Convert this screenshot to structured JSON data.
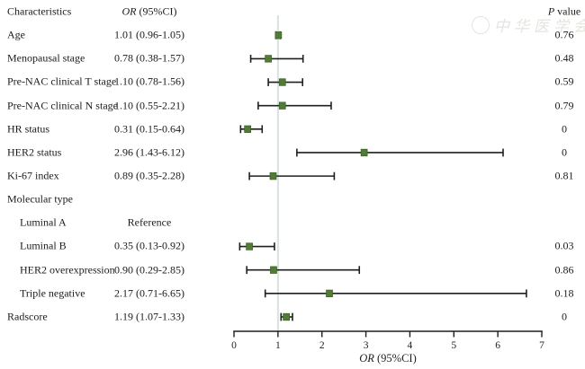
{
  "header": {
    "characteristics": "Characteristics",
    "or_col_italic": "OR",
    "or_col_rest": " (95%CI)",
    "p_col_italic": "P",
    "p_col_rest": " value"
  },
  "watermark": {
    "emblem": "medical-association-seal",
    "text": "中华医学会"
  },
  "chart_data": {
    "type": "forest",
    "title": "",
    "xlabel_italic": "OR",
    "xlabel_rest": " (95%CI)",
    "xlim": [
      0,
      7
    ],
    "xticks": [
      "0",
      "1",
      "2",
      "3",
      "4",
      "5",
      "6",
      "7"
    ],
    "ref_line_x": 1,
    "grid": false,
    "accent_color": "#4e7d33",
    "marker_edge_color": "#3a6122",
    "refline_color": "#d6e3e1",
    "ink_color": "#1f1f1f",
    "rows": [
      {
        "label": "Age",
        "indent": false,
        "or_text": "1.01 (0.96-1.05)",
        "p": "0.76",
        "est": 1.01,
        "lo": 0.96,
        "hi": 1.05
      },
      {
        "label": "Menopausal stage",
        "indent": false,
        "or_text": "0.78 (0.38-1.57)",
        "p": "0.48",
        "est": 0.78,
        "lo": 0.38,
        "hi": 1.57
      },
      {
        "label": "Pre-NAC clinical T stage",
        "indent": false,
        "or_text": "1.10 (0.78-1.56)",
        "p": "0.59",
        "est": 1.1,
        "lo": 0.78,
        "hi": 1.56
      },
      {
        "label": "Pre-NAC clinical N stage",
        "indent": false,
        "or_text": "1.10 (0.55-2.21)",
        "p": "0.79",
        "est": 1.1,
        "lo": 0.55,
        "hi": 2.21
      },
      {
        "label": "HR status",
        "indent": false,
        "or_text": "0.31 (0.15-0.64)",
        "p": "0",
        "est": 0.31,
        "lo": 0.15,
        "hi": 0.64
      },
      {
        "label": "HER2 status",
        "indent": false,
        "or_text": "2.96 (1.43-6.12)",
        "p": "0",
        "est": 2.96,
        "lo": 1.43,
        "hi": 6.12
      },
      {
        "label": "Ki-67 index",
        "indent": false,
        "or_text": "0.89 (0.35-2.28)",
        "p": "0.81",
        "est": 0.89,
        "lo": 0.35,
        "hi": 2.28
      },
      {
        "label": "Molecular type",
        "indent": false,
        "or_text": "",
        "p": "",
        "est": null,
        "lo": null,
        "hi": null
      },
      {
        "label": "Luminal A",
        "indent": true,
        "or_text": "Reference",
        "p": "",
        "est": null,
        "lo": null,
        "hi": null
      },
      {
        "label": "Luminal B",
        "indent": true,
        "or_text": "0.35 (0.13-0.92)",
        "p": "0.03",
        "est": 0.35,
        "lo": 0.13,
        "hi": 0.92
      },
      {
        "label": "HER2 overexpression",
        "indent": true,
        "or_text": "0.90 (0.29-2.85)",
        "p": "0.86",
        "est": 0.9,
        "lo": 0.29,
        "hi": 2.85
      },
      {
        "label": "Triple negative",
        "indent": true,
        "or_text": "2.17 (0.71-6.65)",
        "p": "0.18",
        "est": 2.17,
        "lo": 0.71,
        "hi": 6.65
      },
      {
        "label": "Radscore",
        "indent": false,
        "or_text": "1.19 (1.07-1.33)",
        "p": "0",
        "est": 1.19,
        "lo": 1.07,
        "hi": 1.33
      }
    ]
  }
}
